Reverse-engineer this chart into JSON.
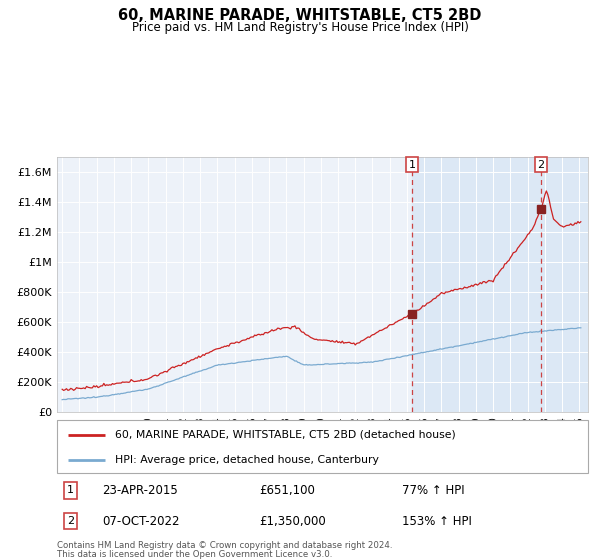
{
  "title": "60, MARINE PARADE, WHITSTABLE, CT5 2BD",
  "subtitle": "Price paid vs. HM Land Registry's House Price Index (HPI)",
  "legend_line1": "60, MARINE PARADE, WHITSTABLE, CT5 2BD (detached house)",
  "legend_line2": "HPI: Average price, detached house, Canterbury",
  "transaction1_date": "23-APR-2015",
  "transaction1_price": 651100,
  "transaction1_label": "77% ↑ HPI",
  "transaction2_date": "07-OCT-2022",
  "transaction2_price": 1350000,
  "transaction2_label": "153% ↑ HPI",
  "footer": "Contains HM Land Registry data © Crown copyright and database right 2024.\nThis data is licensed under the Open Government Licence v3.0.",
  "background_color": "#ffffff",
  "plot_bg_color": "#edf2f9",
  "highlight_bg_color": "#dce8f5",
  "red_line_color": "#cc2222",
  "blue_line_color": "#7aaad0",
  "marker_color": "#882222",
  "grid_color": "#ffffff",
  "dashed_line_color": "#cc4444",
  "ylim": [
    0,
    1700000
  ],
  "yticks": [
    0,
    200000,
    400000,
    600000,
    800000,
    1000000,
    1200000,
    1400000,
    1600000
  ],
  "ytick_labels": [
    "£0",
    "£200K",
    "£400K",
    "£600K",
    "£800K",
    "£1M",
    "£1.2M",
    "£1.4M",
    "£1.6M"
  ],
  "xstart": 1995,
  "xend": 2025,
  "transaction1_x": 2015.3,
  "transaction2_x": 2022.77
}
